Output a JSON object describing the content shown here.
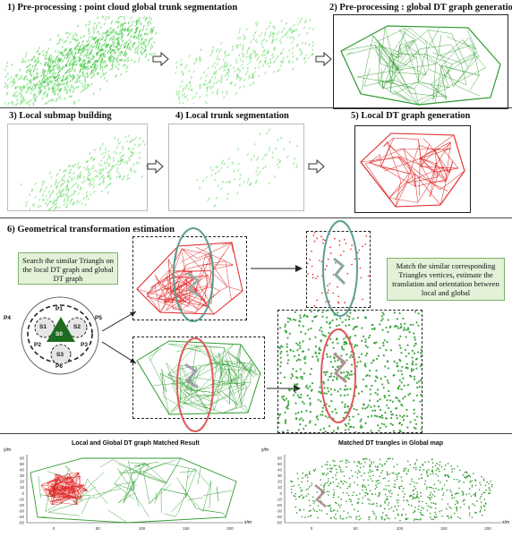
{
  "sections": {
    "s1": "1) Pre-processing : point cloud global trunk segmentation",
    "s2": "2) Pre-processing : global DT graph generation",
    "s3": "3) Local submap building",
    "s4": "4) Local  trunk segmentation",
    "s5": "5) Local DT graph generation",
    "s6": "6) Geometrical transformation estimation"
  },
  "notes": {
    "left": "Search the similar Triangls on the local DT graph and global DT graph",
    "right": "Match the similar corresponding Triangles vertices, estimate the translation and orientation between local and global"
  },
  "triangle_diagram": {
    "labels": [
      "P1",
      "P4",
      "P5",
      "S1",
      "S2",
      "S0",
      "P2",
      "P3",
      "S3",
      "P6"
    ]
  },
  "bottom_left_chart": {
    "title": "Local and Global DT graph Matched Result",
    "ylabel": "y/m",
    "xlabel": "x/m",
    "yticks": [
      "60",
      "50",
      "40",
      "30",
      "20",
      "10",
      "0",
      "-10",
      "-20",
      "-30",
      "-40",
      "-50"
    ],
    "xticks": [
      "0",
      "50",
      "100",
      "150",
      "200"
    ]
  },
  "bottom_right_chart": {
    "title": "Matched DT trangles in Global map",
    "ylabel": "y/m",
    "xlabel": "x/m",
    "yticks": [
      "60",
      "50",
      "40",
      "30",
      "20",
      "10",
      "0",
      "-10",
      "-20",
      "-30",
      "-40",
      "-50"
    ],
    "xticks": [
      "0",
      "50",
      "100",
      "150",
      "200"
    ]
  },
  "colors": {
    "green": "#2e9b2e",
    "light_green": "#7be07b",
    "red": "#e02424",
    "teal": "#5aa08f",
    "note_bg": "#e3f1d9"
  }
}
